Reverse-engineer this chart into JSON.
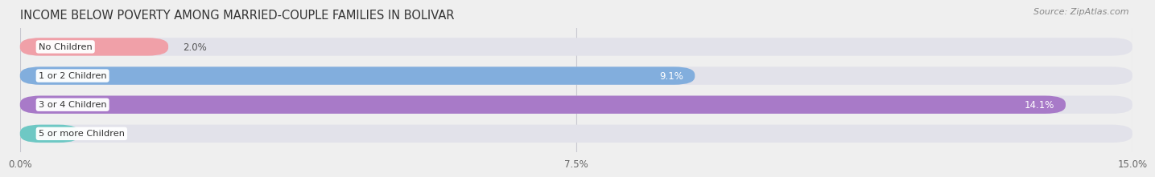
{
  "title": "INCOME BELOW POVERTY AMONG MARRIED-COUPLE FAMILIES IN BOLIVAR",
  "source": "Source: ZipAtlas.com",
  "categories": [
    "No Children",
    "1 or 2 Children",
    "3 or 4 Children",
    "5 or more Children"
  ],
  "values": [
    2.0,
    9.1,
    14.1,
    0.0
  ],
  "bar_colors": [
    "#f0a0a8",
    "#82aedd",
    "#a87ac8",
    "#6ec8c4"
  ],
  "label_colors": [
    "#666666",
    "#ffffff",
    "#ffffff",
    "#555555"
  ],
  "value_label_inside": [
    false,
    true,
    true,
    false
  ],
  "x_ticks": [
    0.0,
    7.5,
    15.0
  ],
  "x_tick_labels": [
    "0.0%",
    "7.5%",
    "15.0%"
  ],
  "xlim": [
    0,
    15.0
  ],
  "background_color": "#efefef",
  "bar_background_color": "#e2e2ea",
  "title_fontsize": 10.5,
  "source_fontsize": 8,
  "bar_height": 0.62,
  "zero_bar_width": 0.8
}
